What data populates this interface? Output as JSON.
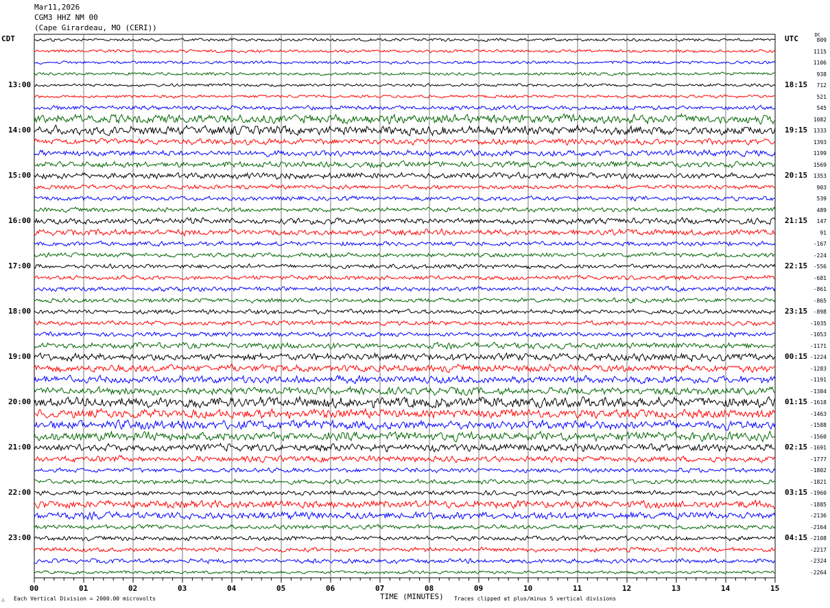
{
  "header": {
    "date": "Mar11,2026",
    "station": "CGM3 HHZ NM 00",
    "location": "(Cape Girardeau, MO (CERI))"
  },
  "left_tz": "CDT",
  "right_tz": "UTC",
  "dc_label": "DC",
  "chart_data": {
    "type": "line",
    "xlabel": "TIME (MINUTES)",
    "x_ticks": [
      "00",
      "01",
      "02",
      "03",
      "04",
      "05",
      "06",
      "07",
      "08",
      "09",
      "10",
      "11",
      "12",
      "13",
      "14",
      "15"
    ],
    "xlim": [
      0,
      15
    ],
    "grid": true,
    "trace_colors": [
      "#000000",
      "#ff0000",
      "#0000ff",
      "#006400"
    ],
    "left_labels": [
      {
        "row": 4,
        "text": "13:00"
      },
      {
        "row": 8,
        "text": "14:00"
      },
      {
        "row": 12,
        "text": "15:00"
      },
      {
        "row": 16,
        "text": "16:00"
      },
      {
        "row": 20,
        "text": "17:00"
      },
      {
        "row": 24,
        "text": "18:00"
      },
      {
        "row": 28,
        "text": "19:00"
      },
      {
        "row": 32,
        "text": "20:00"
      },
      {
        "row": 36,
        "text": "21:00"
      },
      {
        "row": 40,
        "text": "22:00"
      },
      {
        "row": 44,
        "text": "23:00"
      }
    ],
    "right_labels": [
      {
        "row": 4,
        "text": "18:15"
      },
      {
        "row": 8,
        "text": "19:15"
      },
      {
        "row": 12,
        "text": "20:15"
      },
      {
        "row": 16,
        "text": "21:15"
      },
      {
        "row": 20,
        "text": "22:15"
      },
      {
        "row": 24,
        "text": "23:15"
      },
      {
        "row": 28,
        "text": "00:15"
      },
      {
        "row": 32,
        "text": "01:15"
      },
      {
        "row": 36,
        "text": "02:15"
      },
      {
        "row": 40,
        "text": "03:15"
      },
      {
        "row": 44,
        "text": "04:15"
      }
    ],
    "dc_offsets": [
      "809",
      "1115",
      "1106",
      "938",
      "712",
      "521",
      "545",
      "1082",
      "1333",
      "1393",
      "1199",
      "1569",
      "1353",
      "903",
      "539",
      "489",
      "147",
      "91",
      "-167",
      "-224",
      "-556",
      "-681",
      "-861",
      "-865",
      "-898",
      "-1035",
      "-1053",
      "-1171",
      "-1224",
      "-1283",
      "-1191",
      "-1384",
      "-1618",
      "-1463",
      "-1588",
      "-1560",
      "-1691",
      "-1777",
      "-1802",
      "-1821",
      "-1960",
      "-1885",
      "-2136",
      "-2164",
      "-2108",
      "-2217",
      "-2324",
      "-2264"
    ],
    "trace_activity": [
      2,
      2,
      2,
      2,
      2,
      2,
      3,
      6,
      6,
      4,
      4,
      4,
      4,
      3,
      3,
      3,
      4,
      4,
      3,
      3,
      3,
      3,
      3,
      3,
      3,
      3,
      3,
      4,
      5,
      5,
      5,
      5,
      7,
      6,
      6,
      6,
      5,
      4,
      3,
      3,
      3,
      5,
      5,
      3,
      3,
      3,
      3,
      2
    ]
  },
  "footer": {
    "scale": "Each Vertical Division = 2000.00 microvolts",
    "clip": "Traces clipped at plus/minus 5 vertical divisions",
    "mark": "∴"
  }
}
